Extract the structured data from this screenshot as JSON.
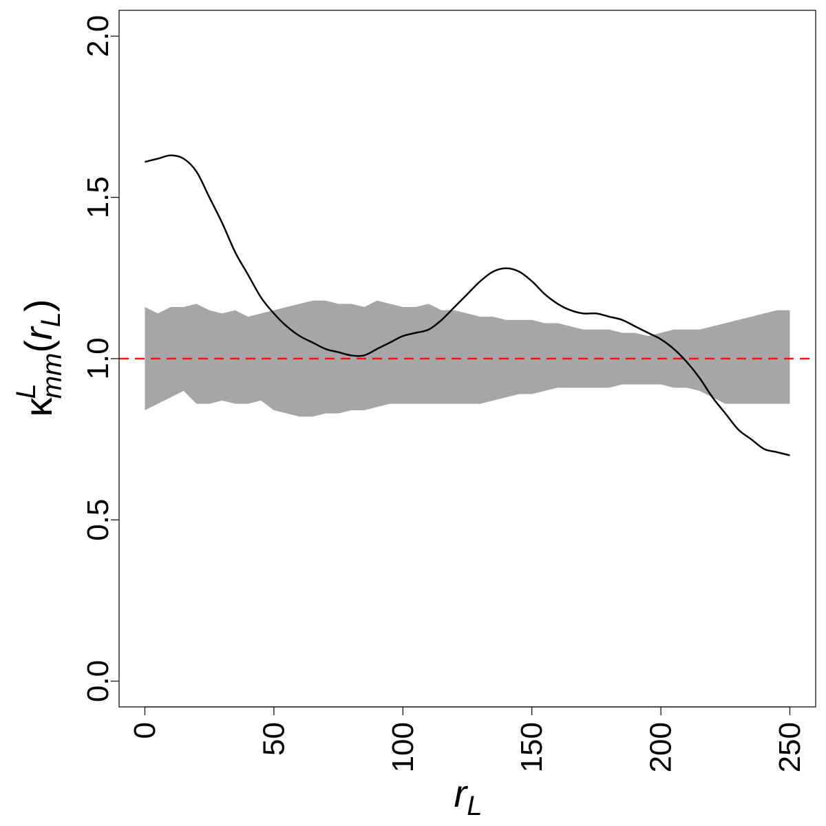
{
  "chart_data": {
    "type": "line",
    "title": "",
    "xlabel": {
      "main": "r",
      "sub": "L"
    },
    "ylabel": {
      "kappa": "κ",
      "sup": "L",
      "sub": "mm",
      "paren_open": "(",
      "r": "r",
      "r_sub": "L",
      "paren_close": ")"
    },
    "xlim": [
      -10,
      260
    ],
    "ylim": [
      -0.08,
      2.08
    ],
    "x_ticks": [
      0,
      50,
      100,
      150,
      200,
      250
    ],
    "x_tick_labels": [
      "0",
      "50",
      "100",
      "150",
      "200",
      "250"
    ],
    "y_ticks": [
      0.0,
      0.5,
      1.0,
      1.5,
      2.0
    ],
    "y_tick_labels": [
      "0.0",
      "0.5",
      "1.0",
      "1.5",
      "2.0"
    ],
    "reference_line": {
      "y": 1.0,
      "color": "#e31a1c",
      "style": "dashed"
    },
    "envelope": {
      "color": "#a6a6a6",
      "x": [
        0,
        5,
        10,
        15,
        20,
        25,
        30,
        35,
        40,
        45,
        50,
        55,
        60,
        65,
        70,
        75,
        80,
        85,
        90,
        95,
        100,
        105,
        110,
        115,
        120,
        125,
        130,
        135,
        140,
        145,
        150,
        155,
        160,
        165,
        170,
        175,
        180,
        185,
        190,
        195,
        200,
        205,
        210,
        215,
        220,
        225,
        230,
        235,
        240,
        245,
        250
      ],
      "upper": [
        1.16,
        1.14,
        1.16,
        1.16,
        1.17,
        1.15,
        1.14,
        1.15,
        1.13,
        1.14,
        1.15,
        1.16,
        1.17,
        1.18,
        1.18,
        1.17,
        1.17,
        1.16,
        1.18,
        1.17,
        1.16,
        1.16,
        1.17,
        1.15,
        1.15,
        1.14,
        1.13,
        1.13,
        1.12,
        1.12,
        1.12,
        1.11,
        1.11,
        1.1,
        1.09,
        1.09,
        1.09,
        1.08,
        1.08,
        1.07,
        1.08,
        1.09,
        1.09,
        1.09,
        1.1,
        1.11,
        1.12,
        1.13,
        1.14,
        1.15,
        1.15
      ],
      "lower": [
        0.84,
        0.86,
        0.88,
        0.9,
        0.86,
        0.86,
        0.87,
        0.86,
        0.86,
        0.87,
        0.84,
        0.83,
        0.82,
        0.82,
        0.83,
        0.83,
        0.84,
        0.84,
        0.85,
        0.86,
        0.86,
        0.86,
        0.86,
        0.86,
        0.86,
        0.86,
        0.86,
        0.87,
        0.88,
        0.89,
        0.89,
        0.9,
        0.91,
        0.91,
        0.91,
        0.91,
        0.91,
        0.92,
        0.92,
        0.92,
        0.92,
        0.91,
        0.91,
        0.9,
        0.88,
        0.86,
        0.86,
        0.86,
        0.86,
        0.86,
        0.86
      ]
    },
    "series": [
      {
        "color": "#000000",
        "x": [
          0,
          5,
          10,
          15,
          20,
          25,
          30,
          35,
          40,
          45,
          50,
          55,
          60,
          65,
          70,
          75,
          80,
          85,
          90,
          95,
          100,
          105,
          110,
          115,
          120,
          125,
          130,
          135,
          140,
          145,
          150,
          155,
          160,
          165,
          170,
          175,
          180,
          185,
          190,
          195,
          200,
          205,
          210,
          215,
          220,
          225,
          230,
          235,
          240,
          245,
          250
        ],
        "y": [
          1.61,
          1.62,
          1.63,
          1.62,
          1.58,
          1.5,
          1.42,
          1.33,
          1.26,
          1.19,
          1.14,
          1.1,
          1.07,
          1.05,
          1.03,
          1.02,
          1.01,
          1.01,
          1.03,
          1.05,
          1.07,
          1.08,
          1.09,
          1.12,
          1.16,
          1.2,
          1.24,
          1.27,
          1.28,
          1.27,
          1.24,
          1.2,
          1.17,
          1.15,
          1.14,
          1.14,
          1.13,
          1.12,
          1.1,
          1.08,
          1.06,
          1.03,
          0.99,
          0.94,
          0.88,
          0.83,
          0.78,
          0.75,
          0.72,
          0.71,
          0.7
        ]
      }
    ],
    "grid": false,
    "legend": "none"
  }
}
